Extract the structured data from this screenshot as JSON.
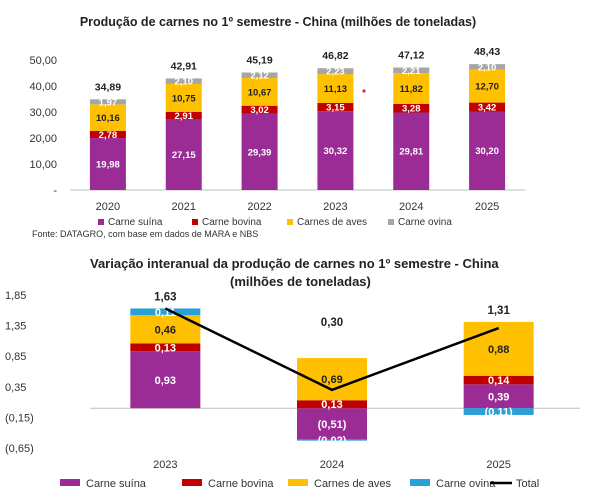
{
  "colors": {
    "suina": "#9b2c96",
    "bovina": "#c00000",
    "aves": "#ffc000",
    "ovina": "#a6a6a6",
    "ovina_bottom": "#2aa0d8",
    "total_line": "#000000",
    "red_marker": "#e03030"
  },
  "source_note": "Fonte: DATAGRO, com base em dados de MARA e NBS",
  "chart_data": [
    {
      "type": "bar",
      "stacked": true,
      "title": "Produção de carnes no 1º semestre - China (milhões de toneladas)",
      "categories": [
        "2020",
        "2021",
        "2022",
        "2023",
        "2024",
        "2025"
      ],
      "series": [
        {
          "name": "Carne suína",
          "values": [
            19.98,
            27.15,
            29.39,
            30.32,
            29.81,
            30.2
          ],
          "labels": [
            "19,98",
            "27,15",
            "29,39",
            "30,32",
            "29,81",
            "30,20"
          ]
        },
        {
          "name": "Carne bovina",
          "values": [
            2.78,
            2.91,
            3.02,
            3.15,
            3.28,
            3.42
          ],
          "labels": [
            "2,78",
            "2,91",
            "3,02",
            "3,15",
            "3,28",
            "3,42"
          ]
        },
        {
          "name": "Carnes de aves",
          "values": [
            10.16,
            10.75,
            10.67,
            11.13,
            11.82,
            12.7
          ],
          "labels": [
            "10,16",
            "10,75",
            "10,67",
            "11,13",
            "11,82",
            "12,70"
          ]
        },
        {
          "name": "Carne ovina",
          "values": [
            1.97,
            2.1,
            2.12,
            2.23,
            2.21,
            2.1
          ],
          "labels": [
            "1,97",
            "2,10",
            "2,12",
            "2,23",
            "2,21",
            "2,10"
          ]
        }
      ],
      "totals": [
        34.89,
        42.91,
        45.19,
        46.82,
        47.12,
        48.43
      ],
      "total_labels": [
        "34,89",
        "42,91",
        "45,19",
        "46,82",
        "47,12",
        "48,43"
      ],
      "ylim": [
        0,
        50
      ],
      "yticks": [
        0,
        10,
        20,
        30,
        40,
        50
      ],
      "ytick_labels": [
        "-",
        "10,00",
        "20,00",
        "30,00",
        "40,00",
        "50,00"
      ],
      "legend_position": "bottom",
      "grid": false
    },
    {
      "type": "bar",
      "stacked": true,
      "title_lines": [
        "Variação interanual da produção de carnes no 1º semestre - China",
        "(milhões de toneladas)"
      ],
      "categories": [
        "2023",
        "2024",
        "2025"
      ],
      "series": [
        {
          "name": "Carne suína",
          "values": [
            0.93,
            -0.51,
            0.39
          ],
          "labels": [
            "0,93",
            "(0,51)",
            "0,39"
          ]
        },
        {
          "name": "Carne bovina",
          "values": [
            0.13,
            0.13,
            0.14
          ],
          "labels": [
            "0,13",
            "0,13",
            "0,14"
          ]
        },
        {
          "name": "Carnes de aves",
          "values": [
            0.46,
            0.69,
            0.88
          ],
          "labels": [
            "0,46",
            "0,69",
            "0,88"
          ]
        },
        {
          "name": "Carne ovina",
          "values": [
            0.11,
            -0.02,
            -0.11
          ],
          "labels": [
            "0,11",
            "(0,02)",
            "(0,11)"
          ]
        }
      ],
      "total_series_name": "Total",
      "totals": [
        1.63,
        0.3,
        1.31
      ],
      "total_labels": [
        "1,63",
        "0,30",
        "1,31"
      ],
      "ylim": [
        -0.65,
        1.85
      ],
      "yticks": [
        -0.65,
        -0.15,
        0.35,
        0.85,
        1.35,
        1.85
      ],
      "ytick_labels": [
        "(0,65)",
        "(0,15)",
        "0,35",
        "0,85",
        "1,35",
        "1,85"
      ],
      "legend_position": "bottom",
      "grid": false
    }
  ]
}
